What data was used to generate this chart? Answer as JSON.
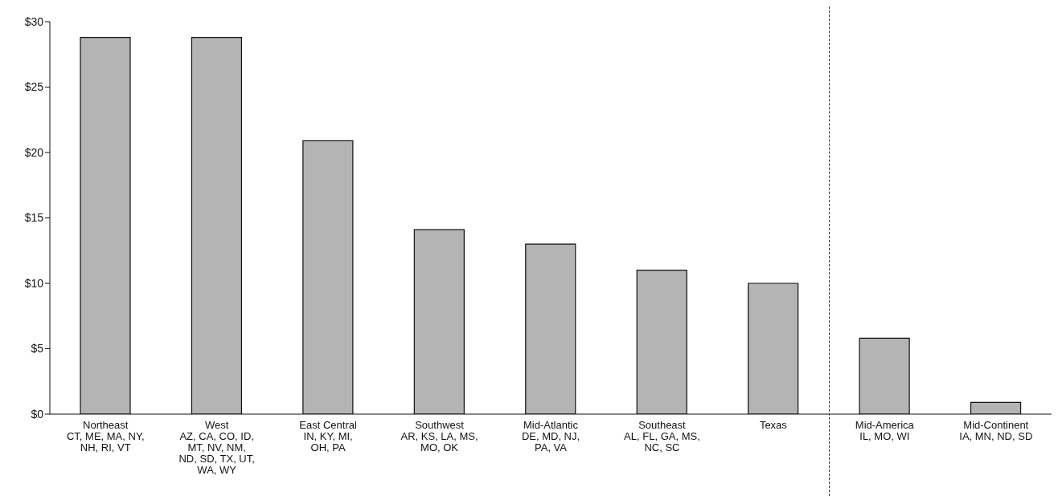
{
  "chart_data": {
    "type": "bar",
    "categories": [
      "Northeast\nCT, ME, MA, NY,\nNH, RI, VT",
      "West\nAZ, CA, CO, ID,\nMT, NV, NM,\nND, SD, TX, UT,\nWA, WY",
      "East Central\nIN, KY, MI,\nOH, PA",
      "Southwest\nAR, KS, LA, MS,\nMO, OK",
      "Mid-Atlantic\nDE, MD, NJ,\nPA, VA",
      "Southeast\nAL, FL, GA, MS,\nNC, SC",
      "Texas",
      "Mid-America\nIL, MO, WI",
      "Mid-Continent\nIA, MN, ND, SD"
    ],
    "values": [
      28.8,
      28.8,
      20.9,
      14.1,
      13.0,
      11.0,
      10.0,
      5.8,
      0.9
    ],
    "color": "#b4b4b4",
    "ylim": [
      0,
      30
    ],
    "yticks": [
      {
        "value": 0,
        "label": "$0"
      },
      {
        "value": 5,
        "label": "$5"
      },
      {
        "value": 10,
        "label": "$10"
      },
      {
        "value": 15,
        "label": "$15"
      },
      {
        "value": 20,
        "label": "$20"
      },
      {
        "value": 25,
        "label": "$25"
      },
      {
        "value": 30,
        "label": "$30"
      }
    ],
    "grid": false,
    "legend": false
  }
}
